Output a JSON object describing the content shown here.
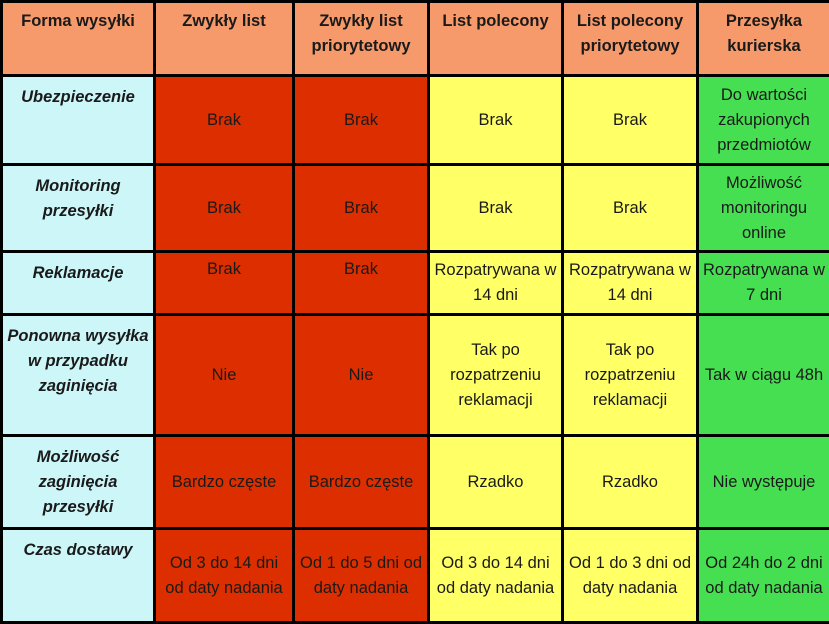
{
  "columns": [
    "Forma wysyłki",
    "Zwykły list",
    "Zwykły list priorytetowy",
    "List polecony",
    "List polecony priorytetowy",
    "Przesyłka kurierska"
  ],
  "rows": [
    {
      "label": "Ubezpieczenie",
      "cells": [
        "Brak",
        "Brak",
        "Brak",
        "Brak",
        "Do wartości zakupionych przedmiotów"
      ]
    },
    {
      "label": "Monitoring przesyłki",
      "cells": [
        "Brak",
        "Brak",
        "Brak",
        "Brak",
        "Możliwość monitoringu online"
      ]
    },
    {
      "label": "Reklamacje",
      "cells": [
        "Brak",
        "Brak",
        "Rozpatrywana w 14 dni",
        "Rozpatrywana w 14 dni",
        "Rozpatrywana w 7 dni"
      ]
    },
    {
      "label": "Ponowna wysyłka w przypadku zaginięcia",
      "cells": [
        "Nie",
        "Nie",
        "Tak po rozpatrzeniu reklamacji",
        "Tak po rozpatrzeniu reklamacji",
        "Tak w ciągu 48h"
      ]
    },
    {
      "label": "Możliwość zaginięcia przesyłki",
      "cells": [
        "Bardzo częste",
        "Bardzo częste",
        "Rzadko",
        "Rzadko",
        "Nie występuje"
      ]
    },
    {
      "label": "Czas dostawy",
      "cells": [
        "Od 3 do 14 dni od daty nadania",
        "Od 1 do 5 dni od daty nadania",
        "Od 3 do 14 dni od daty nadania",
        "Od 1 do 3 dni od daty nadania",
        "Od 24h do 2 dni od daty nadania"
      ]
    }
  ],
  "colors": {
    "header": "#f79a6b",
    "row_label": "#cdf6f8",
    "ordinary": "#dd2e00",
    "registered": "#ffff66",
    "courier": "#47df52"
  }
}
